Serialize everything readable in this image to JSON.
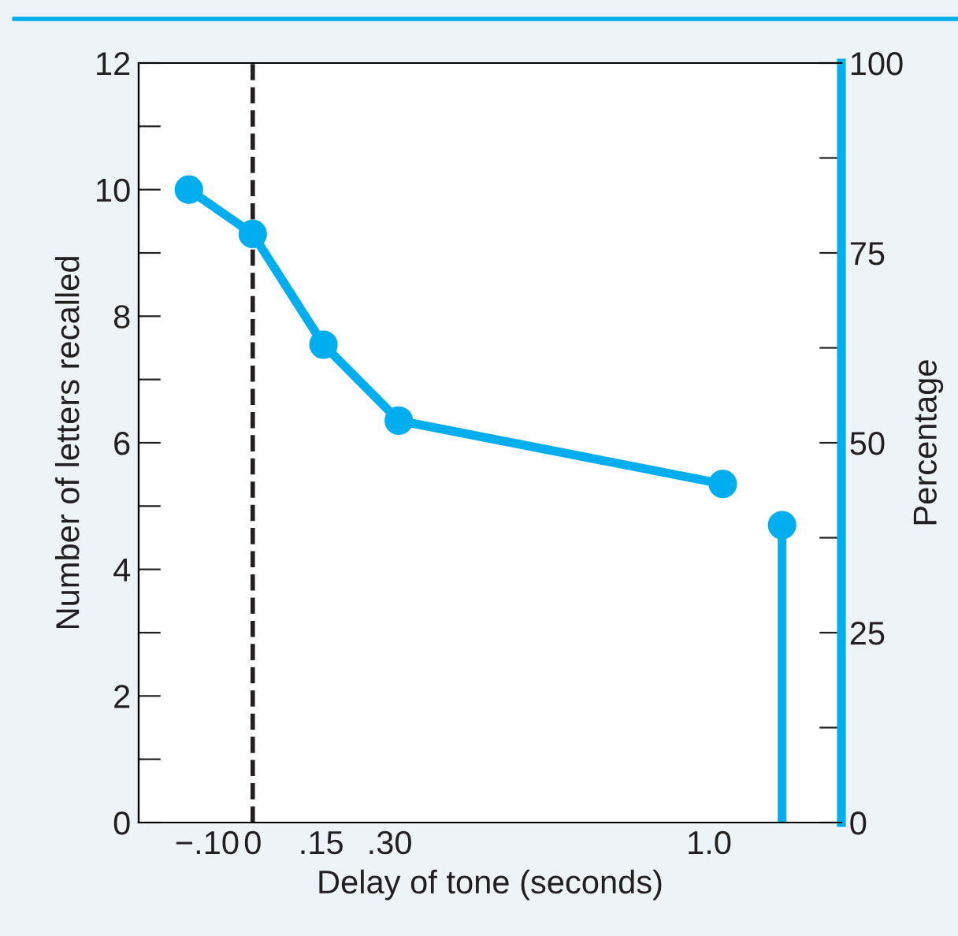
{
  "chart_data": {
    "type": "line",
    "xlabel": "Delay of tone (seconds)",
    "ylabel": "Number of letters recalled",
    "y2label": "Percentage",
    "series": [
      {
        "color": "#00aeef",
        "x": [
          -0.14,
          0.0,
          0.155,
          0.32,
          1.03
        ],
        "values": [
          10.0,
          9.3,
          7.55,
          6.35,
          5.35
        ]
      },
      {
        "type": "lollipop",
        "color": "#00aeef",
        "x": [
          1.16
        ],
        "values": [
          4.7
        ]
      }
    ],
    "marker": "circle",
    "line_style": "solid",
    "xlim": [
      -0.25,
      1.29
    ],
    "xticks": [
      {
        "value": -0.1,
        "label": "−.10"
      },
      0,
      {
        "value": 0.15,
        "label": ".15"
      },
      {
        "value": 0.3,
        "label": ".30"
      },
      {
        "value": 1.0,
        "label": "1.0"
      }
    ],
    "ylim": [
      0,
      12
    ],
    "yticks": [
      0,
      {
        "value": 1,
        "label": null
      },
      2,
      {
        "value": 3,
        "label": null
      },
      4,
      {
        "value": 5,
        "label": null
      },
      6,
      {
        "value": 7,
        "label": null
      },
      8,
      {
        "value": 9,
        "label": null
      },
      10,
      {
        "value": 11,
        "label": null
      },
      12
    ],
    "y2lim": [
      0,
      100
    ],
    "y2ticks": [
      0,
      {
        "value": 12.5,
        "label": null
      },
      25,
      {
        "value": 37.5,
        "label": null
      },
      50,
      {
        "value": 62.5,
        "label": null
      },
      75,
      {
        "value": 87.5,
        "label": null
      },
      100
    ],
    "ref_lines": [
      {
        "axis": "x",
        "value": 0,
        "label": null,
        "color": "#231f20",
        "line_style": "dashed"
      }
    ],
    "grid": false,
    "legend": false
  }
}
